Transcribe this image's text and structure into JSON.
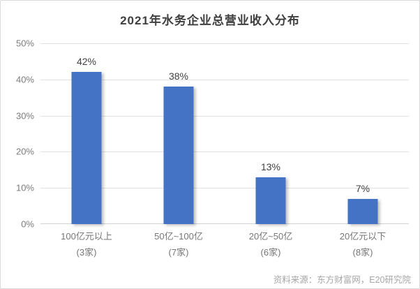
{
  "page": {
    "title": "2021年水务企业总营业收入分布",
    "source": "资料来源：东方财富网，E20研究院"
  },
  "colors": {
    "bar": "#4472c4",
    "gridline": "#e2e2e2",
    "baseline": "#d2d2d2",
    "title_text": "#3f3f3f",
    "value_text": "#404040",
    "tick_text": "#7c7c7c",
    "category_text": "#767676",
    "source_text": "#a6a6a6",
    "card_border": "#dadada"
  },
  "chart_data": {
    "type": "bar",
    "title": "2021年水务企业总营业收入分布",
    "categories": [
      "100亿元以上",
      "50亿~100亿",
      "20亿~50亿",
      "20亿元以下"
    ],
    "category_sublabels": [
      "(3家)",
      "(7家)",
      "(6家)",
      "(8家)"
    ],
    "values": [
      42,
      38,
      13,
      7
    ],
    "value_labels": [
      "42%",
      "38%",
      "13%",
      "7%"
    ],
    "xlabel": "",
    "ylabel": "",
    "ylim": [
      0,
      50
    ],
    "yticks": [
      0,
      10,
      20,
      30,
      40,
      50
    ],
    "ytick_labels": [
      "0%",
      "10%",
      "20%",
      "30%",
      "40%",
      "50%"
    ],
    "grid": true,
    "legend": false,
    "bar_color": "#4472c4",
    "source": "资料来源：东方财富网，E20研究院"
  }
}
